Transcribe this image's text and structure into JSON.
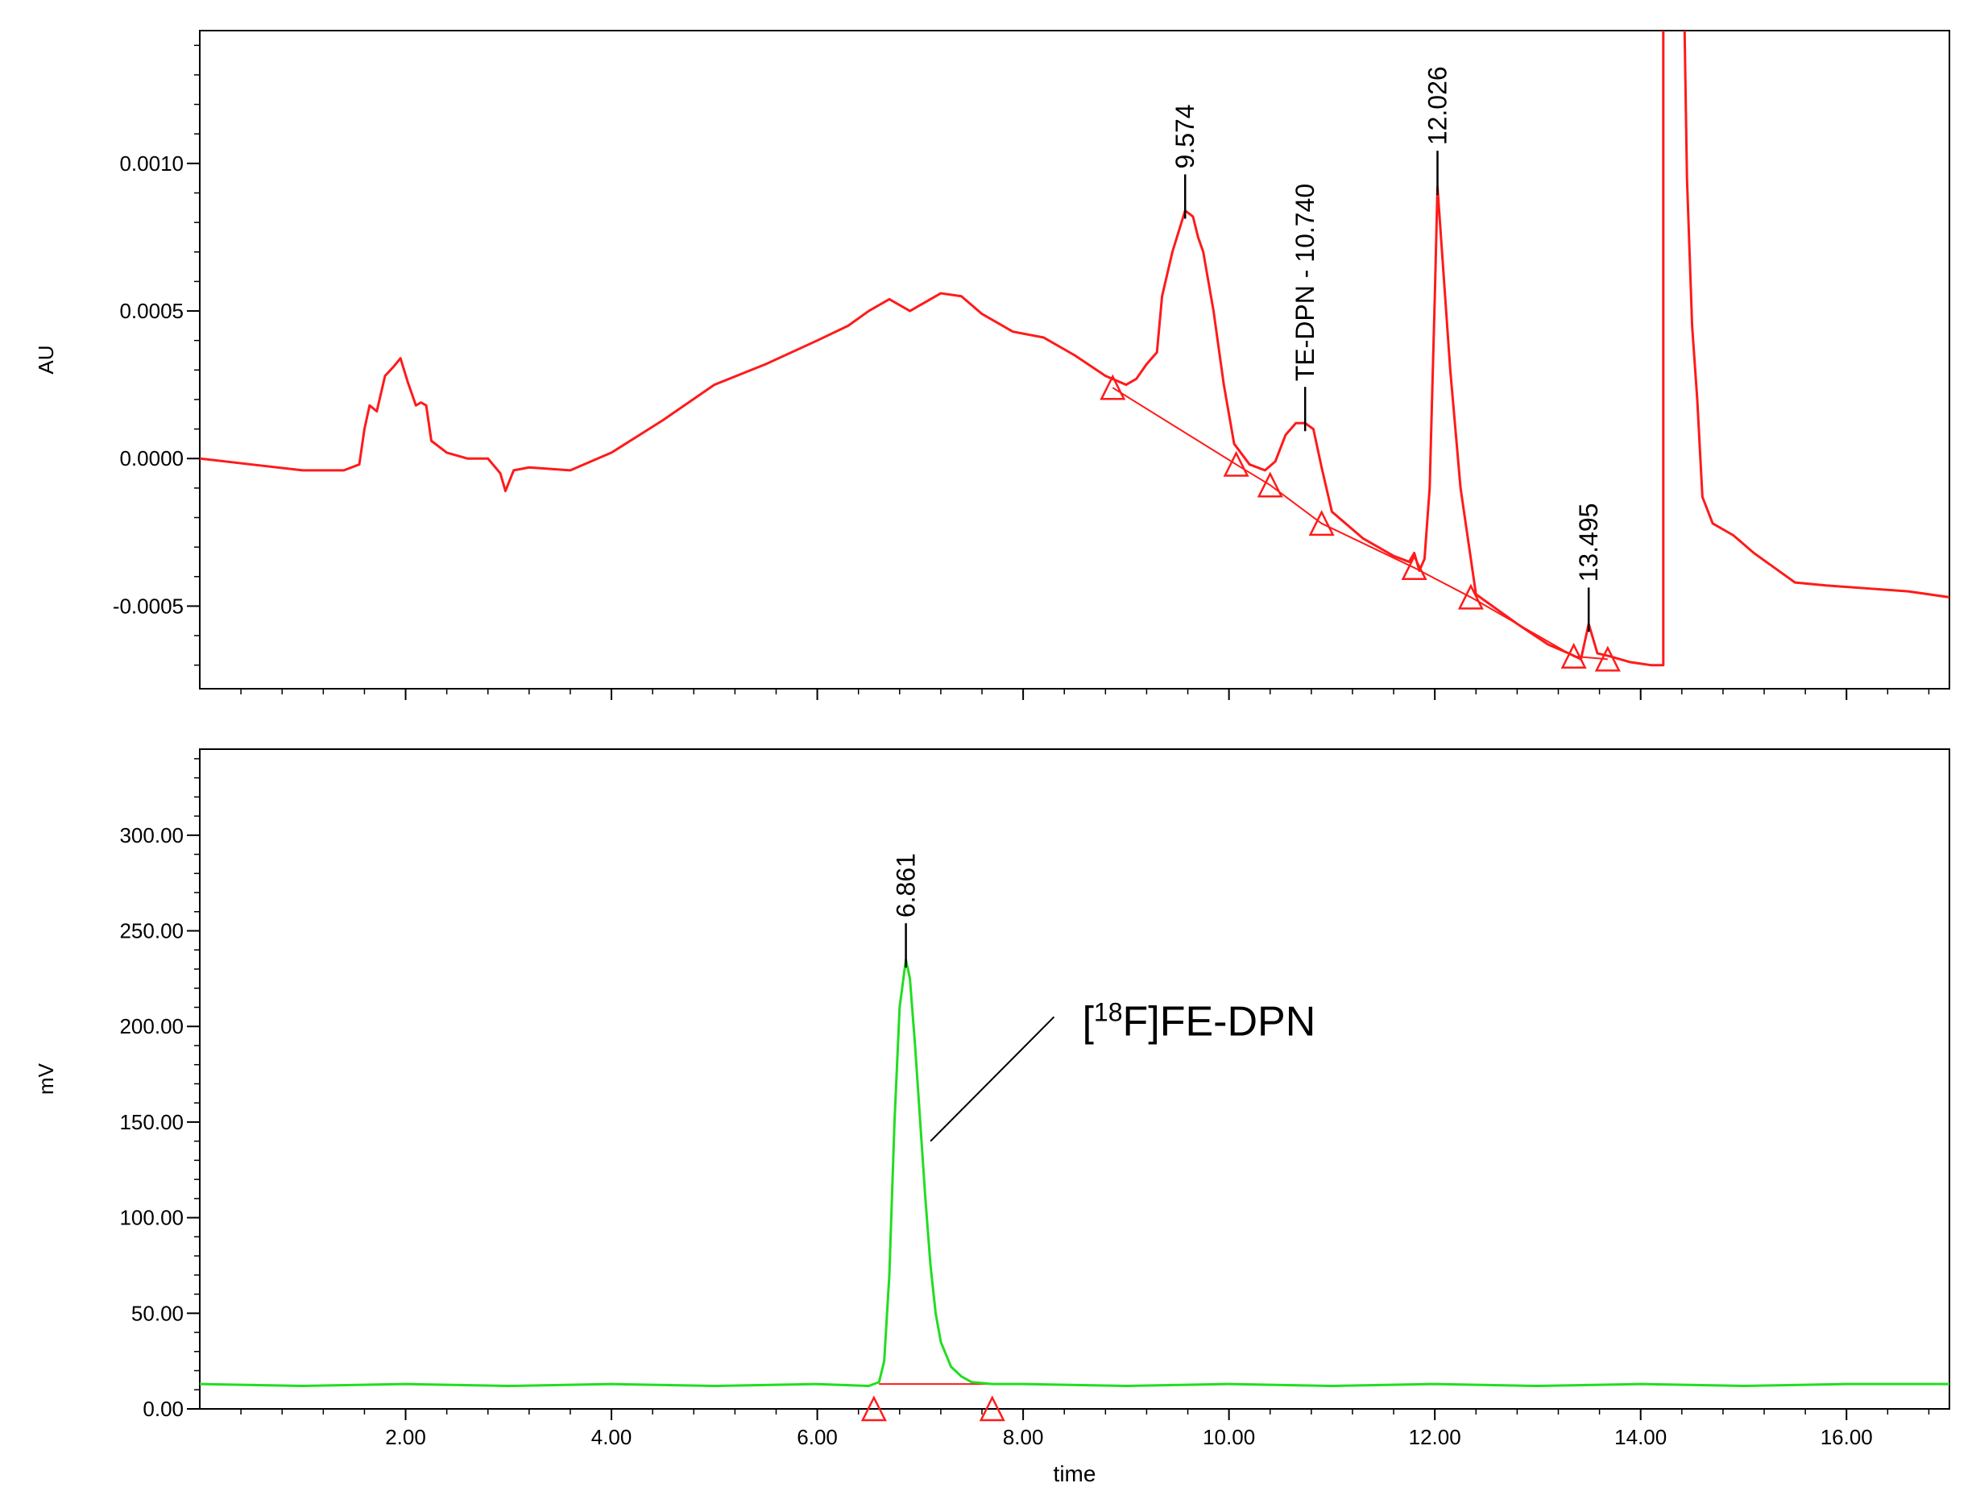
{
  "chart_data": [
    {
      "type": "line",
      "ylabel": "AU",
      "xlim": [
        0,
        17
      ],
      "ylim": [
        -0.00078,
        0.00145
      ],
      "x_ticks": [
        2.0,
        4.0,
        6.0,
        8.0,
        10.0,
        12.0,
        14.0,
        16.0
      ],
      "y_ticks": [
        -0.0005,
        0.0,
        0.0005,
        0.001
      ],
      "y_tick_labels": [
        "-0.0005",
        "0.0000",
        "0.0005",
        "0.0010"
      ],
      "grid": false,
      "colors": {
        "trace": "#ff1a1a",
        "baseline": "#ff1a1a",
        "markers": "#ff1a1a",
        "frame": "#000000"
      },
      "series": [
        {
          "points": [
            [
              0.0,
              0.0
            ],
            [
              0.5,
              -2e-05
            ],
            [
              1.0,
              -4e-05
            ],
            [
              1.4,
              -4e-05
            ],
            [
              1.55,
              -2e-05
            ],
            [
              1.6,
              0.0001
            ],
            [
              1.65,
              0.00018
            ],
            [
              1.72,
              0.00016
            ],
            [
              1.8,
              0.00028
            ],
            [
              1.88,
              0.00031
            ],
            [
              1.95,
              0.00034
            ],
            [
              2.02,
              0.00026
            ],
            [
              2.1,
              0.00018
            ],
            [
              2.15,
              0.00019
            ],
            [
              2.2,
              0.00018
            ],
            [
              2.25,
              6e-05
            ],
            [
              2.4,
              2e-05
            ],
            [
              2.6,
              0.0
            ],
            [
              2.8,
              0.0
            ],
            [
              2.92,
              -5e-05
            ],
            [
              2.97,
              -0.00011
            ],
            [
              3.05,
              -4e-05
            ],
            [
              3.2,
              -3e-05
            ],
            [
              3.6,
              -4e-05
            ],
            [
              4.0,
              2e-05
            ],
            [
              4.5,
              0.00013
            ],
            [
              5.0,
              0.00025
            ],
            [
              5.5,
              0.00032
            ],
            [
              6.0,
              0.0004
            ],
            [
              6.3,
              0.00045
            ],
            [
              6.5,
              0.0005
            ],
            [
              6.7,
              0.00054
            ],
            [
              6.9,
              0.0005
            ],
            [
              7.2,
              0.00056
            ],
            [
              7.4,
              0.00055
            ],
            [
              7.6,
              0.00049
            ],
            [
              7.9,
              0.00043
            ],
            [
              8.2,
              0.00041
            ],
            [
              8.5,
              0.00035
            ],
            [
              8.8,
              0.00028
            ],
            [
              9.0,
              0.00025
            ],
            [
              9.1,
              0.00027
            ],
            [
              9.2,
              0.00032
            ],
            [
              9.3,
              0.00036
            ],
            [
              9.35,
              0.00055
            ],
            [
              9.45,
              0.0007
            ],
            [
              9.574,
              0.00084
            ],
            [
              9.65,
              0.00082
            ],
            [
              9.7,
              0.00075
            ],
            [
              9.75,
              0.0007
            ],
            [
              9.85,
              0.0005
            ],
            [
              9.95,
              0.00025
            ],
            [
              10.05,
              5e-05
            ],
            [
              10.2,
              -2e-05
            ],
            [
              10.35,
              -4e-05
            ],
            [
              10.45,
              -1e-05
            ],
            [
              10.55,
              8e-05
            ],
            [
              10.65,
              0.00012
            ],
            [
              10.74,
              0.00012
            ],
            [
              10.82,
              0.0001
            ],
            [
              10.9,
              -3e-05
            ],
            [
              11.0,
              -0.00018
            ],
            [
              11.3,
              -0.00027
            ],
            [
              11.6,
              -0.00033
            ],
            [
              11.75,
              -0.00035
            ],
            [
              11.8,
              -0.00032
            ],
            [
              11.85,
              -0.00038
            ],
            [
              11.9,
              -0.00034
            ],
            [
              11.95,
              -0.0001
            ],
            [
              12.0,
              0.00055
            ],
            [
              12.026,
              0.00092
            ],
            [
              12.08,
              0.00065
            ],
            [
              12.15,
              0.0003
            ],
            [
              12.25,
              -0.0001
            ],
            [
              12.4,
              -0.00046
            ],
            [
              12.8,
              -0.00056
            ],
            [
              13.1,
              -0.00063
            ],
            [
              13.3,
              -0.00066
            ],
            [
              13.42,
              -0.00068
            ],
            [
              13.495,
              -0.00056
            ],
            [
              13.58,
              -0.00066
            ],
            [
              13.7,
              -0.00067
            ],
            [
              13.9,
              -0.00069
            ],
            [
              14.1,
              -0.0007
            ],
            [
              14.22,
              -0.0007
            ],
            [
              14.22,
              0.0016
            ]
          ]
        },
        {
          "points": [
            [
              14.42,
              0.0016
            ],
            [
              14.45,
              0.00095
            ],
            [
              14.5,
              0.00045
            ],
            [
              14.55,
              0.0002
            ],
            [
              14.6,
              -0.00013
            ],
            [
              14.7,
              -0.00022
            ],
            [
              14.9,
              -0.00026
            ],
            [
              15.1,
              -0.00032
            ],
            [
              15.3,
              -0.00037
            ],
            [
              15.5,
              -0.00042
            ],
            [
              15.8,
              -0.00043
            ],
            [
              16.2,
              -0.00044
            ],
            [
              16.6,
              -0.00045
            ],
            [
              17.0,
              -0.00047
            ]
          ]
        }
      ],
      "peak_labels": [
        {
          "x": 9.574,
          "y": 0.00084,
          "text": "9.574"
        },
        {
          "x": 10.74,
          "y": 0.00012,
          "text": "TE-DPN - 10.740"
        },
        {
          "x": 12.026,
          "y": 0.00092,
          "text": "12.026"
        },
        {
          "x": 13.495,
          "y": -0.00056,
          "text": "13.495"
        }
      ],
      "integration_markers": [
        [
          8.87,
          0.00024
        ],
        [
          10.07,
          -2e-05
        ],
        [
          10.4,
          -9e-05
        ],
        [
          10.9,
          -0.00022
        ],
        [
          11.8,
          -0.00037
        ],
        [
          12.35,
          -0.00047
        ],
        [
          13.35,
          -0.00067
        ],
        [
          13.68,
          -0.00068
        ]
      ],
      "baselines": [
        [
          [
            8.87,
            0.00024
          ],
          [
            10.07,
            -2e-05
          ],
          [
            10.4,
            -9e-05
          ],
          [
            10.9,
            -0.00022
          ],
          [
            11.8,
            -0.00037
          ],
          [
            12.35,
            -0.00047
          ],
          [
            13.35,
            -0.00067
          ],
          [
            13.68,
            -0.00068
          ]
        ]
      ]
    },
    {
      "type": "line",
      "xlabel": "time",
      "ylabel": "mV",
      "xlim": [
        0,
        17
      ],
      "ylim": [
        0,
        345
      ],
      "x_ticks": [
        2.0,
        4.0,
        6.0,
        8.0,
        10.0,
        12.0,
        14.0,
        16.0
      ],
      "x_tick_labels": [
        "2.00",
        "4.00",
        "6.00",
        "8.00",
        "10.00",
        "12.00",
        "14.00",
        "16.00"
      ],
      "y_ticks": [
        0,
        50,
        100,
        150,
        200,
        250,
        300
      ],
      "y_tick_labels": [
        "0.00",
        "50.00",
        "100.00",
        "150.00",
        "200.00",
        "250.00",
        "300.00"
      ],
      "grid": false,
      "colors": {
        "trace": "#22dd22",
        "baseline": "#ff1a1a",
        "markers": "#ff1a1a",
        "annotation_line": "#000000"
      },
      "series": [
        {
          "points": [
            [
              0.0,
              13
            ],
            [
              1.0,
              12
            ],
            [
              2.0,
              13
            ],
            [
              3.0,
              12
            ],
            [
              4.0,
              13
            ],
            [
              5.0,
              12
            ],
            [
              6.0,
              13
            ],
            [
              6.5,
              12
            ],
            [
              6.6,
              14
            ],
            [
              6.65,
              25
            ],
            [
              6.7,
              70
            ],
            [
              6.75,
              150
            ],
            [
              6.8,
              210
            ],
            [
              6.861,
              235
            ],
            [
              6.9,
              225
            ],
            [
              6.95,
              190
            ],
            [
              7.0,
              150
            ],
            [
              7.05,
              110
            ],
            [
              7.1,
              75
            ],
            [
              7.15,
              50
            ],
            [
              7.2,
              35
            ],
            [
              7.3,
              22
            ],
            [
              7.4,
              17
            ],
            [
              7.5,
              14
            ],
            [
              7.7,
              13
            ],
            [
              8.0,
              13
            ],
            [
              9.0,
              12
            ],
            [
              10.0,
              13
            ],
            [
              11.0,
              12
            ],
            [
              12.0,
              13
            ],
            [
              13.0,
              12
            ],
            [
              14.0,
              13
            ],
            [
              15.0,
              12
            ],
            [
              16.0,
              13
            ],
            [
              17.0,
              13
            ]
          ]
        }
      ],
      "peak_labels": [
        {
          "x": 6.861,
          "y": 235,
          "text": "6.861"
        }
      ],
      "integration_markers": [
        [
          6.55,
          0
        ],
        [
          7.7,
          0
        ]
      ],
      "baselines": [
        [
          [
            6.6,
            13
          ],
          [
            7.7,
            13
          ]
        ]
      ],
      "annotation": {
        "text_prefix": "[",
        "superscript": "18",
        "text_suffix": "F]FE-DPN",
        "from": [
          7.1,
          140
        ],
        "to": [
          8.3,
          205
        ]
      }
    }
  ]
}
